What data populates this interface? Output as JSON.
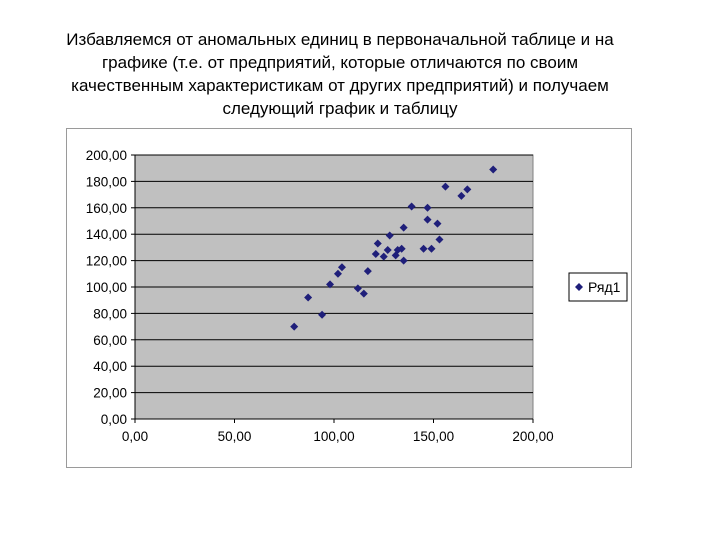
{
  "slide": {
    "title_lines": [
      "Избавляемся от аномальных единиц в первоначальной таблице и на",
      "графике (т.е. от предприятий, которые отличаются по своим",
      "качественным характеристикам от других предприятий) и получаем",
      "следующий график и таблицу"
    ]
  },
  "chart_data": {
    "type": "scatter",
    "xlim": [
      0,
      200
    ],
    "ylim": [
      0,
      200
    ],
    "x_ticks": [
      "0,00",
      "50,00",
      "100,00",
      "150,00",
      "200,00"
    ],
    "y_ticks": [
      "0,00",
      "20,00",
      "40,00",
      "60,00",
      "80,00",
      "100,00",
      "120,00",
      "140,00",
      "160,00",
      "180,00",
      "200,00"
    ],
    "grid": "horizontal",
    "legend_position": "right",
    "marker_color": "#1f1f7a",
    "plot_background": "#c0c0c0",
    "series": [
      {
        "name": "Ряд1",
        "x": [
          80,
          87,
          94,
          98,
          102,
          104,
          112,
          115,
          117,
          121,
          122,
          125,
          127,
          128,
          131,
          132,
          134,
          135,
          135,
          139,
          145,
          147,
          147,
          149,
          152,
          153,
          156,
          164,
          167,
          180
        ],
        "y": [
          70,
          92,
          79,
          102,
          110,
          115,
          99,
          95,
          112,
          125,
          133,
          123,
          128,
          139,
          124,
          128,
          129,
          120,
          145,
          161,
          129,
          151,
          160,
          129,
          148,
          136,
          176,
          169,
          174,
          189
        ]
      }
    ]
  }
}
